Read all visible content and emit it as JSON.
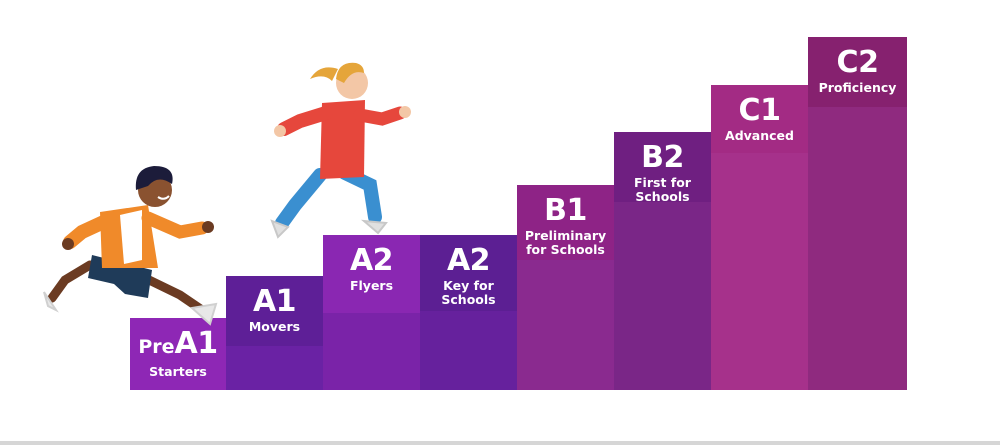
{
  "steps": [
    {
      "level": "A1",
      "prefix": "Pre",
      "exam": "Starters",
      "colors": {
        "cap": "#8e27b5",
        "body": "#8e27b5"
      }
    },
    {
      "level": "A1",
      "prefix": "",
      "exam": "Movers",
      "colors": {
        "cap": "#5e1f97",
        "body": "#6a22a4"
      }
    },
    {
      "level": "A2",
      "prefix": "",
      "exam": "Flyers",
      "colors": {
        "cap": "#8a27b2",
        "body": "#7a23a8"
      }
    },
    {
      "level": "A2",
      "prefix": "",
      "exam": "Key for\nSchools",
      "colors": {
        "cap": "#5c1f93",
        "body": "#66219d"
      }
    },
    {
      "level": "B1",
      "prefix": "",
      "exam": "Preliminary\nfor Schools",
      "colors": {
        "cap": "#8e2386",
        "body": "#8a2a8f"
      }
    },
    {
      "level": "B2",
      "prefix": "",
      "exam": "First for\nSchools",
      "colors": {
        "cap": "#6f1f81",
        "body": "#7a2687"
      }
    },
    {
      "level": "C1",
      "prefix": "",
      "exam": "Advanced",
      "colors": {
        "cap": "#a32b84",
        "body": "#a6318b"
      }
    },
    {
      "level": "C2",
      "prefix": "",
      "exam": "Proficiency",
      "colors": {
        "cap": "#86216f",
        "body": "#8f2a7f"
      }
    }
  ],
  "illustrations": [
    {
      "name": "running-boy-icon"
    },
    {
      "name": "running-girl-icon"
    }
  ]
}
